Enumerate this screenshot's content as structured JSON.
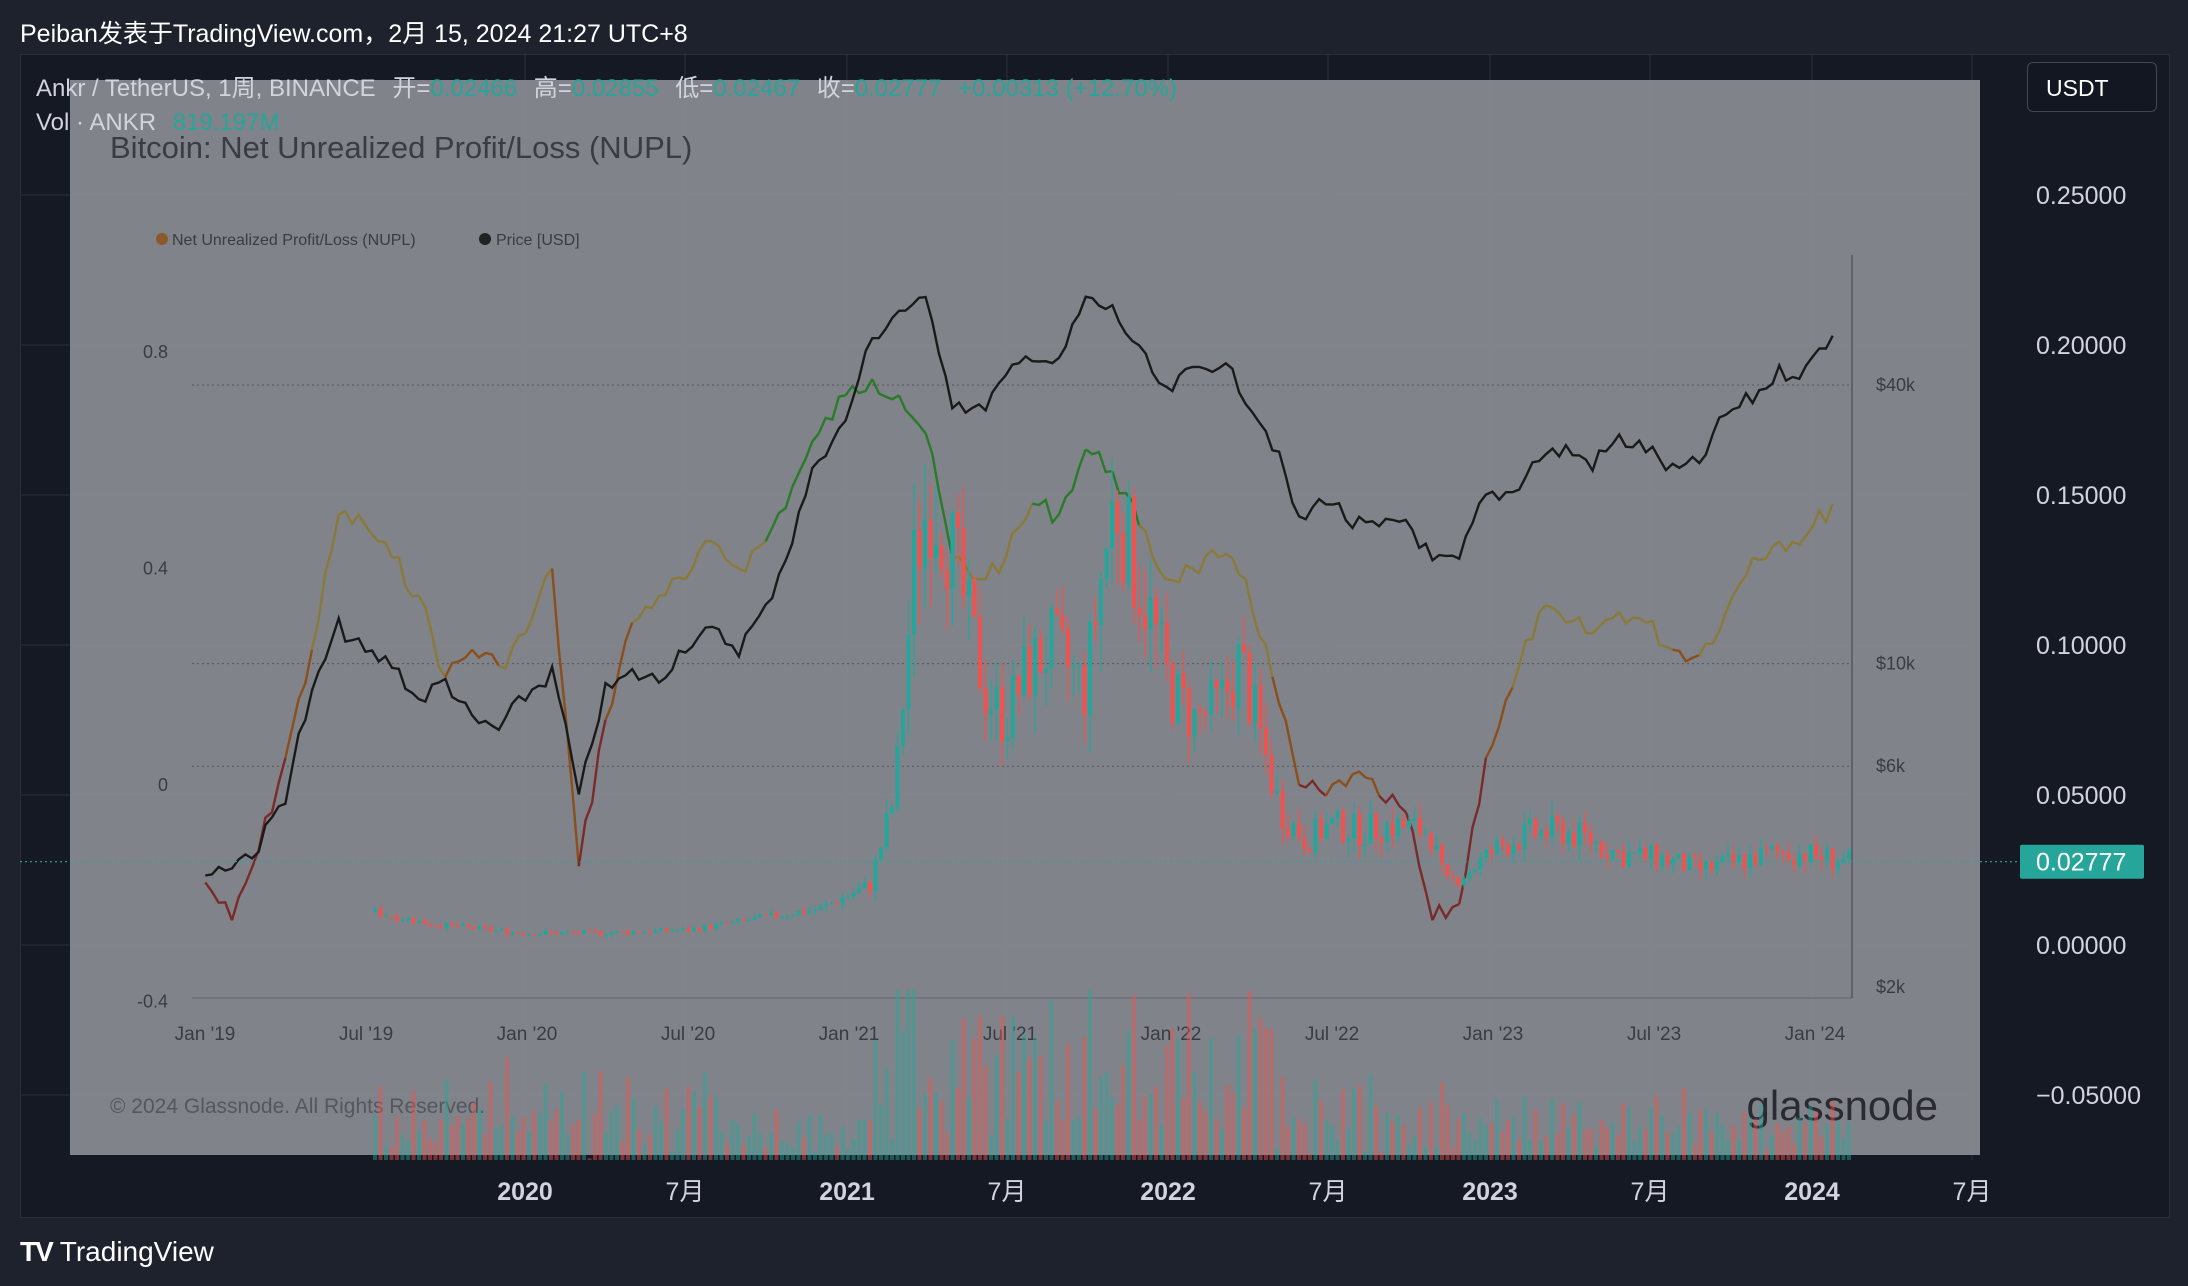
{
  "header": {
    "title": "Peiban发表于TradingView.com，2月 15, 2024 21:27 UTC+8"
  },
  "legend": {
    "symbol": "Ankr / TetherUS, 1周, BINANCE",
    "open_label": "开=",
    "open_value": "0.02466",
    "high_label": "高=",
    "high_value": "0.02855",
    "low_label": "低=",
    "low_value": "0.02467",
    "close_label": "收=",
    "close_value": "0.02777",
    "change": "+0.00313 (+12.70%)",
    "vol_label": "Vol · ANKR",
    "vol_value": "819.197M"
  },
  "toolbar": {
    "currency_button": "USDT"
  },
  "price_axis": {
    "ticks": [
      "0.25000",
      "0.20000",
      "0.15000",
      "0.10000",
      "0.05000",
      "0.00000",
      "−0.05000"
    ],
    "last_price": "0.02777"
  },
  "time_axis": {
    "labels": [
      "2020",
      "7月",
      "2021",
      "7月",
      "2022",
      "7月",
      "2023",
      "7月",
      "2024",
      "7月"
    ]
  },
  "overlay": {
    "title": "Bitcoin: Net Unrealized Profit/Loss (NUPL)",
    "legend_nupl": "Net Unrealized Profit/Loss (NUPL)",
    "legend_price": "Price [USD]",
    "left_ticks": [
      "0.8",
      "0.4",
      "0",
      "-0.4"
    ],
    "right_ticks": [
      "$40k",
      "$10k",
      "$6k",
      "$2k"
    ],
    "x_ticks": [
      "Jan '19",
      "Jul '19",
      "Jan '20",
      "Jul '20",
      "Jan '21",
      "Jul '21",
      "Jan '22",
      "Jul '22",
      "Jan '23",
      "Jul '23",
      "Jan '24"
    ],
    "copyright": "© 2024 Glassnode. All Rights Reserved.",
    "brand": "glassnode"
  },
  "footer": {
    "brand": "TradingView",
    "logo": "TV"
  },
  "colors": {
    "up": "#26a69a",
    "down": "#ef5350",
    "overlay": "#8a8c93",
    "nupl_green": "#2a7a2a",
    "nupl_yellow": "#8a7a3a",
    "nupl_orange": "#8a4f1a",
    "nupl_red": "#7a2a2a",
    "btc_price": "#1a1a1a"
  },
  "chart_data": [
    {
      "type": "line",
      "title": "Bitcoin: Net Unrealized Profit/Loss (NUPL)",
      "series": [
        {
          "name": "Net Unrealized Profit/Loss (NUPL)",
          "x": [
            "2019-01",
            "2019-02",
            "2019-03",
            "2019-04",
            "2019-05",
            "2019-06",
            "2019-07",
            "2019-08",
            "2019-09",
            "2019-10",
            "2019-11",
            "2019-12",
            "2020-01",
            "2020-02",
            "2020-03",
            "2020-04",
            "2020-05",
            "2020-06",
            "2020-07",
            "2020-08",
            "2020-09",
            "2020-10",
            "2020-11",
            "2020-12",
            "2021-01",
            "2021-02",
            "2021-03",
            "2021-04",
            "2021-05",
            "2021-06",
            "2021-07",
            "2021-08",
            "2021-09",
            "2021-10",
            "2021-11",
            "2021-12",
            "2022-01",
            "2022-02",
            "2022-03",
            "2022-04",
            "2022-05",
            "2022-06",
            "2022-07",
            "2022-08",
            "2022-09",
            "2022-10",
            "2022-11",
            "2022-12",
            "2023-01",
            "2023-02",
            "2023-03",
            "2023-04",
            "2023-05",
            "2023-06",
            "2023-07",
            "2023-08",
            "2023-09",
            "2023-10",
            "2023-11",
            "2023-12",
            "2024-01",
            "2024-02"
          ],
          "values": [
            -0.18,
            -0.25,
            -0.12,
            0.05,
            0.25,
            0.5,
            0.48,
            0.42,
            0.35,
            0.2,
            0.25,
            0.22,
            0.28,
            0.4,
            -0.15,
            0.12,
            0.3,
            0.35,
            0.38,
            0.45,
            0.4,
            0.45,
            0.55,
            0.65,
            0.72,
            0.75,
            0.72,
            0.65,
            0.42,
            0.38,
            0.42,
            0.52,
            0.5,
            0.62,
            0.58,
            0.48,
            0.38,
            0.4,
            0.42,
            0.38,
            0.2,
            0.0,
            -0.02,
            0.02,
            -0.02,
            -0.05,
            -0.25,
            -0.22,
            0.05,
            0.18,
            0.32,
            0.3,
            0.28,
            0.32,
            0.3,
            0.25,
            0.24,
            0.32,
            0.42,
            0.45,
            0.46,
            0.52
          ]
        },
        {
          "name": "Price [USD]",
          "x": [
            "2019-01",
            "2019-02",
            "2019-03",
            "2019-04",
            "2019-05",
            "2019-06",
            "2019-07",
            "2019-08",
            "2019-09",
            "2019-10",
            "2019-11",
            "2019-12",
            "2020-01",
            "2020-02",
            "2020-03",
            "2020-04",
            "2020-05",
            "2020-06",
            "2020-07",
            "2020-08",
            "2020-09",
            "2020-10",
            "2020-11",
            "2020-12",
            "2021-01",
            "2021-02",
            "2021-03",
            "2021-04",
            "2021-05",
            "2021-06",
            "2021-07",
            "2021-08",
            "2021-09",
            "2021-10",
            "2021-11",
            "2021-12",
            "2022-01",
            "2022-02",
            "2022-03",
            "2022-04",
            "2022-05",
            "2022-06",
            "2022-07",
            "2022-08",
            "2022-09",
            "2022-10",
            "2022-11",
            "2022-12",
            "2023-01",
            "2023-02",
            "2023-03",
            "2023-04",
            "2023-05",
            "2023-06",
            "2023-07",
            "2023-08",
            "2023-09",
            "2023-10",
            "2023-11",
            "2023-12",
            "2024-01",
            "2024-02"
          ],
          "values": [
            3500,
            3700,
            4000,
            5200,
            8500,
            12000,
            10500,
            10000,
            8300,
            9200,
            7500,
            7200,
            8500,
            9500,
            5000,
            8700,
            9500,
            9200,
            11000,
            11700,
            10800,
            13000,
            18500,
            28000,
            33000,
            50000,
            58000,
            60000,
            37000,
            35000,
            41000,
            47000,
            44000,
            61000,
            58000,
            47000,
            38000,
            43000,
            45000,
            38000,
            30000,
            20000,
            23000,
            20000,
            19500,
            20500,
            16500,
            16600,
            23000,
            23500,
            28000,
            29000,
            27000,
            30500,
            29200,
            26000,
            27000,
            34500,
            37500,
            42500,
            43000,
            52000
          ]
        }
      ],
      "left_ylim": [
        -0.4,
        0.9
      ],
      "right_scale": "log"
    },
    {
      "type": "candlestick",
      "title": "Ankr / TetherUS, 1周, BINANCE",
      "ylim": [
        -0.06,
        0.27
      ],
      "last": {
        "open": 0.02466,
        "high": 0.02855,
        "low": 0.02467,
        "close": 0.02777
      }
    }
  ]
}
